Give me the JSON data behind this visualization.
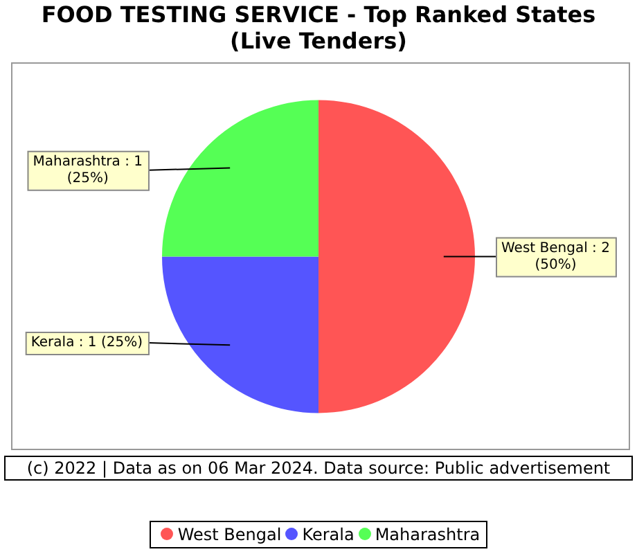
{
  "chart_data": {
    "type": "pie",
    "title": "FOOD TESTING SERVICE - Top Ranked States",
    "subtitle": "(Live Tenders)",
    "categories": [
      "West Bengal",
      "Kerala",
      "Maharashtra"
    ],
    "values": [
      2,
      1,
      1
    ],
    "colors": [
      "#ff5555",
      "#5555ff",
      "#55ff55"
    ],
    "value_labels": [
      "West Bengal : 2\n(50%)",
      "Kerala : 1 (25%)",
      "Maharashtra : 1\n(25%)"
    ],
    "annotations": [
      "(c) 2022 | Data as on 06 Mar 2024. Data source: Public advertisement"
    ],
    "legend": "bottom"
  }
}
